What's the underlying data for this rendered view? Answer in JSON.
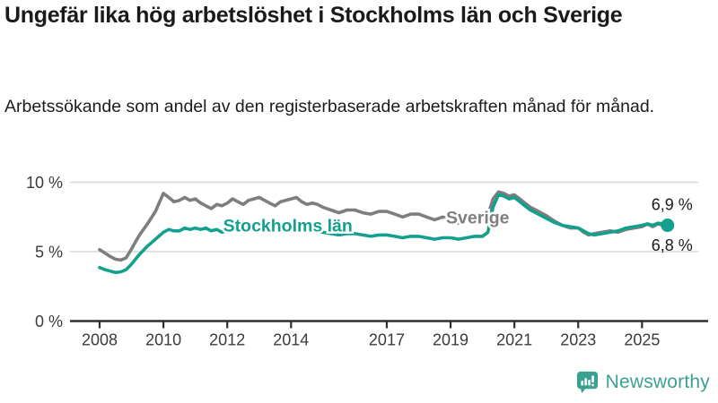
{
  "header": {
    "title": "Ungefär lika hög arbetslöshet i Stockholms län och Sverige",
    "subtitle": "Arbetssökande som andel av den registerbaserade arbetskraften månad för månad."
  },
  "chart_data": {
    "type": "line",
    "title": "Ungefär lika hög arbetslöshet i Stockholms län och Sverige",
    "subtitle": "Arbetssökande som andel av den registerbaserade arbetskraften månad för månad.",
    "xlabel": "",
    "ylabel": "",
    "unit": "%",
    "xlim": [
      2007.1,
      2026.8
    ],
    "ylim": [
      0,
      10
    ],
    "grid": "horizontal-gridlines-at-5-and-10",
    "legend_position": "inline-labels-on-lines",
    "x_ticks": [
      {
        "year": 2008,
        "label": "2008"
      },
      {
        "year": 2010,
        "label": "2010"
      },
      {
        "year": 2012,
        "label": "2012"
      },
      {
        "year": 2014,
        "label": "2014"
      },
      {
        "year": 2017,
        "label": "2017"
      },
      {
        "year": 2019,
        "label": "2019"
      },
      {
        "year": 2021,
        "label": "2021"
      },
      {
        "year": 2023,
        "label": "2023"
      },
      {
        "year": 2025,
        "label": "2025"
      }
    ],
    "y_ticks": [
      {
        "value": 0,
        "label": "0 %"
      },
      {
        "value": 5,
        "label": "5 %"
      },
      {
        "value": 10,
        "label": "10 %"
      }
    ],
    "series": [
      {
        "name": "Sverige",
        "color": "#7e7e7e",
        "end_label": {
          "text": "6,8 %",
          "side": "below"
        },
        "end_dot": false,
        "inline_label": {
          "text": "Sverige",
          "year": 2019.85,
          "value": 7.5
        },
        "points": [
          [
            2008.0,
            5.15
          ],
          [
            2008.17,
            4.9
          ],
          [
            2008.33,
            4.65
          ],
          [
            2008.5,
            4.45
          ],
          [
            2008.67,
            4.4
          ],
          [
            2008.83,
            4.55
          ],
          [
            2009.0,
            5.2
          ],
          [
            2009.25,
            6.2
          ],
          [
            2009.5,
            7.0
          ],
          [
            2009.75,
            7.9
          ],
          [
            2009.92,
            8.8
          ],
          [
            2010.0,
            9.2
          ],
          [
            2010.17,
            8.9
          ],
          [
            2010.33,
            8.6
          ],
          [
            2010.5,
            8.7
          ],
          [
            2010.67,
            8.9
          ],
          [
            2010.83,
            8.7
          ],
          [
            2011.0,
            8.8
          ],
          [
            2011.17,
            8.5
          ],
          [
            2011.33,
            8.3
          ],
          [
            2011.5,
            8.1
          ],
          [
            2011.67,
            8.4
          ],
          [
            2011.83,
            8.3
          ],
          [
            2012.0,
            8.5
          ],
          [
            2012.17,
            8.8
          ],
          [
            2012.33,
            8.6
          ],
          [
            2012.5,
            8.4
          ],
          [
            2012.67,
            8.7
          ],
          [
            2012.83,
            8.8
          ],
          [
            2013.0,
            8.9
          ],
          [
            2013.17,
            8.7
          ],
          [
            2013.33,
            8.5
          ],
          [
            2013.5,
            8.3
          ],
          [
            2013.67,
            8.6
          ],
          [
            2013.83,
            8.7
          ],
          [
            2014.0,
            8.8
          ],
          [
            2014.17,
            8.9
          ],
          [
            2014.33,
            8.6
          ],
          [
            2014.5,
            8.4
          ],
          [
            2014.67,
            8.5
          ],
          [
            2014.83,
            8.4
          ],
          [
            2015.0,
            8.2
          ],
          [
            2015.25,
            8.0
          ],
          [
            2015.5,
            7.8
          ],
          [
            2015.75,
            8.0
          ],
          [
            2016.0,
            8.0
          ],
          [
            2016.25,
            7.8
          ],
          [
            2016.5,
            7.7
          ],
          [
            2016.75,
            7.9
          ],
          [
            2017.0,
            7.9
          ],
          [
            2017.25,
            7.7
          ],
          [
            2017.5,
            7.5
          ],
          [
            2017.75,
            7.7
          ],
          [
            2018.0,
            7.7
          ],
          [
            2018.25,
            7.5
          ],
          [
            2018.5,
            7.3
          ],
          [
            2018.75,
            7.5
          ],
          [
            2019.0,
            7.3
          ],
          [
            2019.25,
            7.05
          ],
          [
            2019.5,
            7.2
          ],
          [
            2019.75,
            7.4
          ],
          [
            2020.0,
            7.3
          ],
          [
            2020.17,
            7.6
          ],
          [
            2020.33,
            8.8
          ],
          [
            2020.5,
            9.3
          ],
          [
            2020.67,
            9.2
          ],
          [
            2020.83,
            9.0
          ],
          [
            2021.0,
            9.1
          ],
          [
            2021.17,
            8.8
          ],
          [
            2021.33,
            8.5
          ],
          [
            2021.5,
            8.2
          ],
          [
            2021.67,
            8.0
          ],
          [
            2021.83,
            7.8
          ],
          [
            2022.0,
            7.6
          ],
          [
            2022.25,
            7.2
          ],
          [
            2022.5,
            6.9
          ],
          [
            2022.75,
            6.7
          ],
          [
            2023.0,
            6.7
          ],
          [
            2023.17,
            6.4
          ],
          [
            2023.33,
            6.2
          ],
          [
            2023.5,
            6.3
          ],
          [
            2023.75,
            6.4
          ],
          [
            2024.0,
            6.5
          ],
          [
            2024.25,
            6.4
          ],
          [
            2024.5,
            6.6
          ],
          [
            2024.75,
            6.7
          ],
          [
            2025.0,
            6.8
          ],
          [
            2025.17,
            7.0
          ],
          [
            2025.33,
            6.8
          ],
          [
            2025.5,
            7.0
          ],
          [
            2025.67,
            6.9
          ],
          [
            2025.8,
            6.8
          ]
        ]
      },
      {
        "name": "Stockholms län",
        "color": "#14a08e",
        "end_label": {
          "text": "6,9 %",
          "side": "above"
        },
        "end_dot": true,
        "inline_label": {
          "text": "Stockholms län",
          "year": 2013.9,
          "value": 6.9
        },
        "points": [
          [
            2008.0,
            3.85
          ],
          [
            2008.17,
            3.7
          ],
          [
            2008.33,
            3.6
          ],
          [
            2008.5,
            3.5
          ],
          [
            2008.67,
            3.55
          ],
          [
            2008.83,
            3.7
          ],
          [
            2009.0,
            4.1
          ],
          [
            2009.25,
            4.8
          ],
          [
            2009.5,
            5.4
          ],
          [
            2009.75,
            5.9
          ],
          [
            2010.0,
            6.4
          ],
          [
            2010.17,
            6.6
          ],
          [
            2010.33,
            6.5
          ],
          [
            2010.5,
            6.5
          ],
          [
            2010.67,
            6.7
          ],
          [
            2010.83,
            6.6
          ],
          [
            2011.0,
            6.7
          ],
          [
            2011.17,
            6.6
          ],
          [
            2011.33,
            6.7
          ],
          [
            2011.5,
            6.5
          ],
          [
            2011.67,
            6.6
          ],
          [
            2011.83,
            6.4
          ],
          [
            2012.0,
            6.5
          ],
          [
            2012.17,
            6.7
          ],
          [
            2012.5,
            6.5
          ],
          [
            2012.83,
            6.6
          ],
          [
            2013.0,
            6.7
          ],
          [
            2013.25,
            6.6
          ],
          [
            2013.5,
            6.5
          ],
          [
            2013.75,
            6.7
          ],
          [
            2014.0,
            6.7
          ],
          [
            2014.25,
            6.6
          ],
          [
            2014.5,
            6.4
          ],
          [
            2014.75,
            6.5
          ],
          [
            2015.0,
            6.4
          ],
          [
            2015.25,
            6.3
          ],
          [
            2015.5,
            6.2
          ],
          [
            2015.75,
            6.3
          ],
          [
            2016.0,
            6.3
          ],
          [
            2016.25,
            6.2
          ],
          [
            2016.5,
            6.1
          ],
          [
            2016.75,
            6.2
          ],
          [
            2017.0,
            6.2
          ],
          [
            2017.25,
            6.1
          ],
          [
            2017.5,
            6.0
          ],
          [
            2017.75,
            6.1
          ],
          [
            2018.0,
            6.1
          ],
          [
            2018.25,
            6.0
          ],
          [
            2018.5,
            5.9
          ],
          [
            2018.75,
            6.0
          ],
          [
            2019.0,
            6.0
          ],
          [
            2019.25,
            5.9
          ],
          [
            2019.5,
            6.0
          ],
          [
            2019.75,
            6.1
          ],
          [
            2020.0,
            6.1
          ],
          [
            2020.17,
            6.4
          ],
          [
            2020.33,
            8.2
          ],
          [
            2020.5,
            9.1
          ],
          [
            2020.67,
            9.0
          ],
          [
            2020.83,
            8.8
          ],
          [
            2021.0,
            8.9
          ],
          [
            2021.17,
            8.6
          ],
          [
            2021.33,
            8.3
          ],
          [
            2021.5,
            8.0
          ],
          [
            2021.67,
            7.8
          ],
          [
            2021.83,
            7.6
          ],
          [
            2022.0,
            7.4
          ],
          [
            2022.25,
            7.1
          ],
          [
            2022.5,
            6.9
          ],
          [
            2022.75,
            6.8
          ],
          [
            2023.0,
            6.7
          ],
          [
            2023.17,
            6.5
          ],
          [
            2023.33,
            6.3
          ],
          [
            2023.5,
            6.2
          ],
          [
            2023.75,
            6.3
          ],
          [
            2024.0,
            6.4
          ],
          [
            2024.25,
            6.5
          ],
          [
            2024.5,
            6.7
          ],
          [
            2024.75,
            6.8
          ],
          [
            2025.0,
            6.9
          ],
          [
            2025.17,
            7.0
          ],
          [
            2025.33,
            6.9
          ],
          [
            2025.5,
            7.05
          ],
          [
            2025.67,
            7.0
          ],
          [
            2025.8,
            6.9
          ]
        ]
      }
    ]
  },
  "footer": {
    "brand": "Newsworthy",
    "brand_color": "#3aa191",
    "logo_icon": "bar-chart-speech-bubble-icon"
  },
  "style_colors": {
    "background": "#ffffff",
    "title_text": "#1a1a1a",
    "axis_text": "#3b3b3b",
    "axis_line": "#2e2e2e",
    "gridline": "#d8d8d8",
    "end_label_text": "#1a1a1a",
    "sweden_line": "#7e7e7e",
    "stockholm_line": "#14a08e"
  }
}
